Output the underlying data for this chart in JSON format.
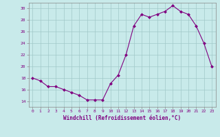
{
  "x": [
    0,
    1,
    2,
    3,
    4,
    5,
    6,
    7,
    8,
    9,
    10,
    11,
    12,
    13,
    14,
    15,
    16,
    17,
    18,
    19,
    20,
    21,
    22,
    23
  ],
  "y": [
    18,
    17.5,
    16.5,
    16.5,
    16,
    15.5,
    15,
    14.2,
    14.2,
    14.2,
    17,
    18.5,
    22,
    27,
    29,
    28.5,
    29,
    29.5,
    30.5,
    29.5,
    29,
    27,
    24,
    20
  ],
  "line_color": "#800080",
  "marker_color": "#800080",
  "bg_color": "#c8eaea",
  "grid_color": "#a0c8c8",
  "axis_color": "#800080",
  "xlabel": "Windchill (Refroidissement éolien,°C)",
  "ylim": [
    13,
    31
  ],
  "xlim": [
    -0.5,
    23.5
  ],
  "yticks": [
    14,
    16,
    18,
    20,
    22,
    24,
    26,
    28,
    30
  ],
  "xticks": [
    0,
    1,
    2,
    3,
    4,
    5,
    6,
    7,
    8,
    9,
    10,
    11,
    12,
    13,
    14,
    15,
    16,
    17,
    18,
    19,
    20,
    21,
    22,
    23
  ]
}
